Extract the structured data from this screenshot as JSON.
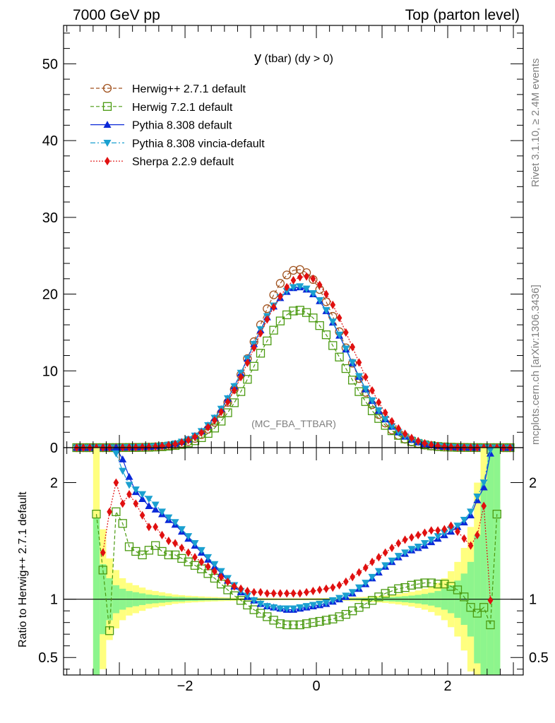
{
  "header": {
    "left": "7000 GeV pp",
    "right": "Top (parton level)"
  },
  "side": {
    "rivet": "Rivet 3.1.10, ≥ 2.4M events",
    "mcplots": "mcplots.cern.ch [arXiv:1306.3436]"
  },
  "chart_data": {
    "type": "line",
    "title_main": "y",
    "title_rest": " (tbar) (dy > 0)",
    "watermark": "(MC_FBA_TTBAR)",
    "xlim": [
      -3.85,
      3.15
    ],
    "upper_ylim": [
      0,
      55
    ],
    "upper_yticks": [
      0,
      10,
      20,
      30,
      40,
      50
    ],
    "ratio_ylabel": "Ratio to Herwig++ 2.7.1 default",
    "ratio_ylim": [
      0.35,
      2.3
    ],
    "ratio_yticks": [
      0.5,
      1,
      2
    ],
    "xticks": [
      -2,
      0,
      2
    ],
    "x_tick_labels": [
      "−2",
      "0",
      "2"
    ],
    "x": [
      -3.65,
      -3.55,
      -3.45,
      -3.35,
      -3.25,
      -3.15,
      -3.05,
      -2.95,
      -2.85,
      -2.75,
      -2.65,
      -2.55,
      -2.45,
      -2.35,
      -2.25,
      -2.15,
      -2.05,
      -1.95,
      -1.85,
      -1.75,
      -1.65,
      -1.55,
      -1.45,
      -1.35,
      -1.25,
      -1.15,
      -1.05,
      -0.95,
      -0.85,
      -0.75,
      -0.65,
      -0.55,
      -0.45,
      -0.35,
      -0.25,
      -0.15,
      -0.05,
      0.05,
      0.15,
      0.25,
      0.35,
      0.45,
      0.55,
      0.65,
      0.75,
      0.85,
      0.95,
      1.05,
      1.15,
      1.25,
      1.35,
      1.45,
      1.55,
      1.65,
      1.75,
      1.85,
      1.95,
      2.05,
      2.15,
      2.25,
      2.35,
      2.45,
      2.55,
      2.65,
      2.75,
      2.85,
      2.95
    ],
    "series": [
      {
        "name": "Herwig++ 2.7.1 default",
        "color": "#a0521e",
        "marker": "circle-open",
        "dash": "5,3",
        "values": [
          0.0002,
          0.0005,
          0.001,
          0.0018,
          0.003,
          0.005,
          0.008,
          0.013,
          0.02,
          0.03,
          0.045,
          0.07,
          0.11,
          0.17,
          0.26,
          0.38,
          0.55,
          0.8,
          1.2,
          1.7,
          2.4,
          3.3,
          4.5,
          5.9,
          7.6,
          9.5,
          11.6,
          13.8,
          16.0,
          18.1,
          19.9,
          21.4,
          22.5,
          23.1,
          23.2,
          22.8,
          21.9,
          20.6,
          19.0,
          17.1,
          15.1,
          13.0,
          11.0,
          9.0,
          7.2,
          5.6,
          4.3,
          3.2,
          2.3,
          1.6,
          1.1,
          0.75,
          0.5,
          0.33,
          0.21,
          0.13,
          0.08,
          0.05,
          0.03,
          0.018,
          0.01,
          0.006,
          0.003,
          0.0016,
          0.0008,
          0.0004,
          0.0002
        ]
      },
      {
        "name": "Herwig 7.2.1 default",
        "color": "#4a9a10",
        "marker": "square-open",
        "dash": "5,3",
        "values": [
          0.0002,
          0.0004,
          0.0008,
          0.0013,
          0.002,
          0.0032,
          0.005,
          0.008,
          0.013,
          0.021,
          0.033,
          0.05,
          0.08,
          0.12,
          0.19,
          0.28,
          0.42,
          0.62,
          0.9,
          1.3,
          1.85,
          2.55,
          3.45,
          4.55,
          5.85,
          7.3,
          8.9,
          10.6,
          12.3,
          13.9,
          15.3,
          16.5,
          17.3,
          17.8,
          17.9,
          17.6,
          16.9,
          15.9,
          14.7,
          13.3,
          11.8,
          10.3,
          8.8,
          7.3,
          6.0,
          4.8,
          3.8,
          2.9,
          2.2,
          1.6,
          1.15,
          0.8,
          0.55,
          0.37,
          0.24,
          0.15,
          0.095,
          0.058,
          0.035,
          0.02,
          0.011,
          0.006,
          0.0032,
          0.0017,
          0.0009,
          0.0004,
          0.0002
        ]
      },
      {
        "name": "Pythia 8.308 default",
        "color": "#0a28d8",
        "marker": "triangle-up",
        "dash": "",
        "values": [
          0.0003,
          0.0008,
          0.0018,
          0.0035,
          0.006,
          0.01,
          0.017,
          0.028,
          0.04,
          0.057,
          0.08,
          0.114,
          0.166,
          0.244,
          0.356,
          0.52,
          0.748,
          1.08,
          1.54,
          2.13,
          2.9,
          3.86,
          5.04,
          6.4,
          7.98,
          9.72,
          11.6,
          13.5,
          15.3,
          17.0,
          18.4,
          19.5,
          20.3,
          20.8,
          20.9,
          20.6,
          20.0,
          19.1,
          17.8,
          16.3,
          14.6,
          12.8,
          11.0,
          9.25,
          7.6,
          6.1,
          4.8,
          3.7,
          2.75,
          2.0,
          1.45,
          1.02,
          0.7,
          0.48,
          0.32,
          0.2,
          0.125,
          0.078,
          0.048,
          0.029,
          0.017,
          0.01,
          0.0055,
          0.003,
          0.0015,
          0.0007,
          0.0003
        ]
      },
      {
        "name": "Pythia 8.308 vincia-default",
        "color": "#1aa0d0",
        "marker": "triangle-down",
        "dash": "7,3,2,3",
        "values": [
          0.0003,
          0.0008,
          0.0018,
          0.0035,
          0.006,
          0.0102,
          0.0175,
          0.0285,
          0.041,
          0.058,
          0.081,
          0.116,
          0.168,
          0.247,
          0.36,
          0.525,
          0.755,
          1.09,
          1.55,
          2.14,
          2.91,
          3.87,
          5.05,
          6.41,
          7.99,
          9.73,
          11.6,
          13.5,
          15.4,
          17.1,
          18.5,
          19.6,
          20.4,
          20.9,
          21.0,
          20.7,
          20.1,
          19.2,
          17.9,
          16.4,
          14.7,
          12.9,
          11.1,
          9.3,
          7.65,
          6.15,
          4.85,
          3.72,
          2.77,
          2.02,
          1.46,
          1.03,
          0.71,
          0.48,
          0.32,
          0.2,
          0.126,
          0.079,
          0.049,
          0.03,
          0.0175,
          0.0102,
          0.0056,
          0.003,
          0.0015,
          0.0007,
          0.0003
        ]
      },
      {
        "name": "Sherpa 2.2.9 default",
        "color": "#e01010",
        "marker": "diamond",
        "dash": "2,2",
        "values": [
          0.0003,
          0.0007,
          0.0014,
          0.0026,
          0.0044,
          0.0075,
          0.013,
          0.022,
          0.035,
          0.051,
          0.073,
          0.105,
          0.152,
          0.222,
          0.323,
          0.472,
          0.68,
          0.98,
          1.4,
          1.95,
          2.65,
          3.55,
          4.66,
          5.96,
          7.48,
          9.19,
          11.05,
          13.0,
          14.9,
          16.7,
          18.3,
          19.7,
          20.9,
          21.8,
          22.2,
          22.3,
          22.0,
          21.2,
          20.0,
          18.6,
          16.9,
          15.0,
          13.1,
          11.1,
          9.2,
          7.45,
          5.9,
          4.55,
          3.43,
          2.5,
          1.8,
          1.26,
          0.86,
          0.57,
          0.37,
          0.235,
          0.145,
          0.088,
          0.053,
          0.031,
          0.018,
          0.0103,
          0.0057,
          0.0031,
          0.0016,
          0.0008,
          0.0004
        ]
      }
    ],
    "ratio_series": [
      {
        "name": "Herwig 7.2.1 default",
        "values": [
          null,
          null,
          null,
          1.73,
          1.25,
          0.73,
          1.75,
          1.65,
          1.45,
          1.41,
          1.38,
          1.42,
          1.46,
          1.41,
          1.38,
          1.38,
          1.35,
          1.32,
          1.29,
          1.26,
          1.22,
          1.18,
          1.13,
          1.08,
          1.03,
          0.99,
          0.95,
          0.91,
          0.88,
          0.85,
          0.82,
          0.79,
          0.78,
          0.78,
          0.78,
          0.79,
          0.8,
          0.81,
          0.82,
          0.83,
          0.85,
          0.87,
          0.9,
          0.93,
          0.96,
          0.99,
          1.02,
          1.05,
          1.07,
          1.09,
          1.1,
          1.12,
          1.13,
          1.14,
          1.14,
          1.13,
          1.13,
          1.11,
          1.08,
          1.02,
          0.93,
          0.88,
          0.93,
          0.78,
          1.73,
          null,
          null
        ]
      },
      {
        "name": "Pythia 8.308 default",
        "values": [
          null,
          null,
          null,
          null,
          null,
          null,
          2.3,
          2.2,
          2.05,
          1.92,
          1.86,
          1.8,
          1.77,
          1.73,
          1.68,
          1.64,
          1.58,
          1.52,
          1.46,
          1.4,
          1.34,
          1.28,
          1.22,
          1.16,
          1.11,
          1.06,
          1.02,
          0.99,
          0.96,
          0.94,
          0.93,
          0.92,
          0.91,
          0.91,
          0.92,
          0.93,
          0.94,
          0.95,
          0.96,
          0.98,
          1.0,
          1.02,
          1.05,
          1.09,
          1.13,
          1.18,
          1.23,
          1.28,
          1.32,
          1.36,
          1.39,
          1.42,
          1.44,
          1.46,
          1.49,
          1.52,
          1.55,
          1.58,
          1.62,
          1.66,
          1.72,
          1.85,
          1.96,
          2.25,
          null,
          null,
          null
        ]
      },
      {
        "name": "Pythia 8.308 vincia-default",
        "values": [
          null,
          null,
          null,
          null,
          null,
          null,
          2.25,
          2.1,
          1.98,
          1.94,
          1.9,
          1.86,
          1.81,
          1.75,
          1.7,
          1.66,
          1.6,
          1.54,
          1.48,
          1.42,
          1.36,
          1.3,
          1.24,
          1.18,
          1.12,
          1.07,
          1.03,
          0.99,
          0.96,
          0.94,
          0.93,
          0.92,
          0.92,
          0.92,
          0.93,
          0.94,
          0.95,
          0.96,
          0.97,
          0.99,
          1.01,
          1.03,
          1.06,
          1.1,
          1.14,
          1.19,
          1.24,
          1.29,
          1.33,
          1.37,
          1.4,
          1.43,
          1.45,
          1.48,
          1.51,
          1.54,
          1.57,
          1.6,
          1.63,
          1.68,
          1.75,
          1.88,
          2.0,
          2.28,
          null,
          null,
          null
        ]
      },
      {
        "name": "Sherpa 2.2.9 default",
        "values": [
          null,
          null,
          null,
          null,
          1.4,
          1.75,
          2.0,
          1.82,
          1.9,
          1.82,
          1.72,
          1.62,
          1.62,
          1.55,
          1.5,
          1.48,
          1.44,
          1.4,
          1.36,
          1.32,
          1.28,
          1.24,
          1.19,
          1.15,
          1.11,
          1.09,
          1.07,
          1.06,
          1.06,
          1.05,
          1.05,
          1.05,
          1.05,
          1.05,
          1.05,
          1.06,
          1.07,
          1.08,
          1.09,
          1.1,
          1.12,
          1.15,
          1.19,
          1.23,
          1.27,
          1.32,
          1.36,
          1.4,
          1.44,
          1.48,
          1.51,
          1.53,
          1.55,
          1.57,
          1.59,
          1.59,
          1.6,
          1.63,
          1.58,
          1.52,
          1.46,
          1.55,
          1.8,
          0.99,
          null,
          null,
          null
        ]
      }
    ],
    "ratio_bands": {
      "green": [
        0,
        0,
        0,
        1.7,
        1.3,
        1.18,
        1.12,
        1.09,
        1.07,
        1.06,
        1.05,
        1.04,
        1.035,
        1.03,
        1.025,
        1.02,
        1.02,
        1.015,
        1.015,
        1.012,
        1.01,
        1.01,
        1.008,
        1.008,
        1.006,
        1.006,
        1.005,
        1.005,
        1.005,
        1.004,
        1.004,
        1.004,
        1.004,
        1.004,
        1.004,
        1.004,
        1.005,
        1.005,
        1.005,
        1.006,
        1.006,
        1.007,
        1.008,
        1.009,
        1.01,
        1.012,
        1.014,
        1.016,
        1.019,
        1.022,
        1.026,
        1.031,
        1.037,
        1.045,
        1.055,
        1.07,
        1.09,
        1.12,
        1.16,
        1.22,
        1.32,
        1.55,
        2.0,
        2.3,
        2.3,
        0,
        0
      ],
      "yellow": [
        0,
        0,
        0,
        2.3,
        1.6,
        1.35,
        1.25,
        1.18,
        1.14,
        1.12,
        1.1,
        1.08,
        1.07,
        1.06,
        1.05,
        1.04,
        1.035,
        1.03,
        1.027,
        1.024,
        1.021,
        1.019,
        1.017,
        1.015,
        1.013,
        1.012,
        1.011,
        1.01,
        1.01,
        1.009,
        1.009,
        1.008,
        1.008,
        1.008,
        1.008,
        1.009,
        1.009,
        1.01,
        1.01,
        1.011,
        1.012,
        1.014,
        1.016,
        1.018,
        1.02,
        1.024,
        1.028,
        1.032,
        1.038,
        1.045,
        1.053,
        1.063,
        1.075,
        1.09,
        1.11,
        1.14,
        1.18,
        1.24,
        1.32,
        1.44,
        1.62,
        2.0,
        2.3,
        2.3,
        2.3,
        0,
        0
      ]
    }
  }
}
